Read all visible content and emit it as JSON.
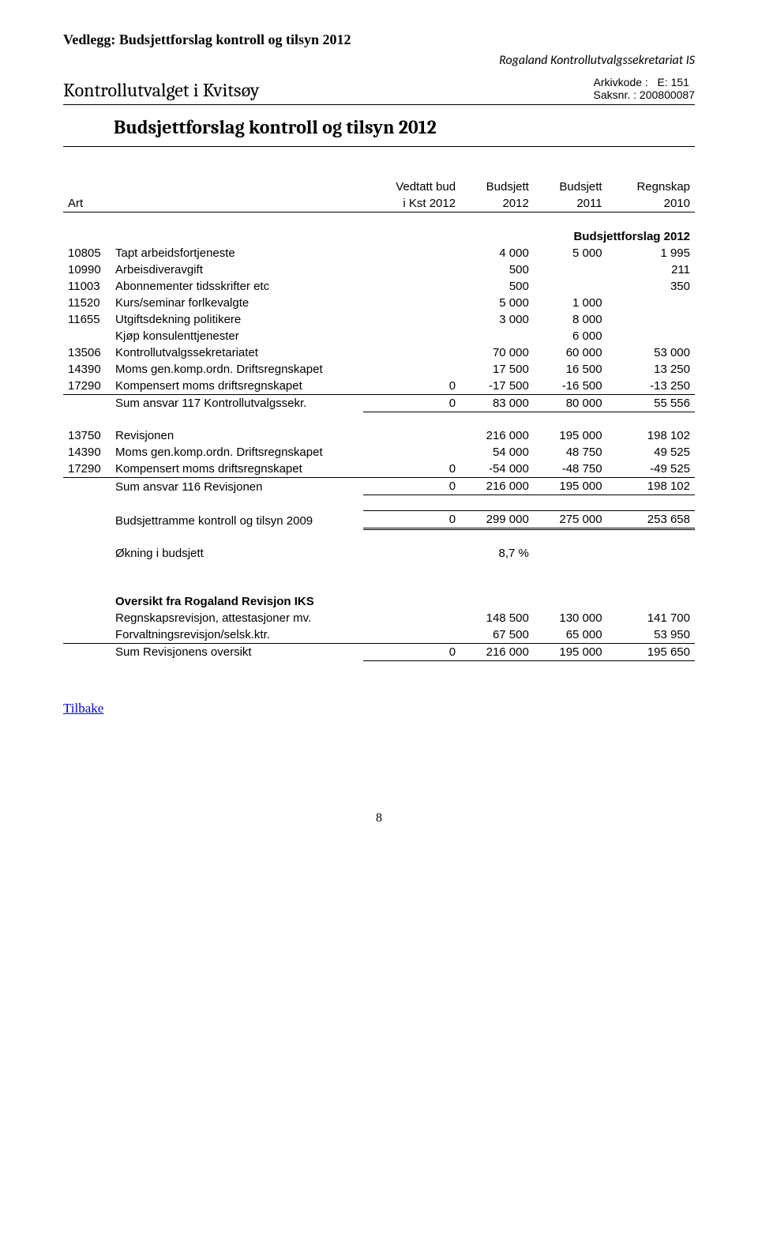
{
  "attachmentTitle": "Vedlegg: Budsjettforslag kontroll og tilsyn 2012",
  "headerRight": "Rogaland Kontrollutvalgssekretariat IS",
  "boardTitle": "Kontrollutvalget i Kvitsøy",
  "arkiv": {
    "lbl1": "Arkivkode :",
    "val1": "E: 151",
    "lbl2": "Saksnr.",
    "sep": " : ",
    "val2": "200800087"
  },
  "proposalTitle": "Budsjettforslag kontroll og tilsyn 2012",
  "columns": {
    "art": "Art",
    "c1a": "Vedtatt bud",
    "c1b": "i Kst 2012",
    "c2a": "Budsjett",
    "c2b": "2012",
    "c3a": "Budsjett",
    "c3b": "2011",
    "c4a": "Regnskap",
    "c4b": "2010"
  },
  "section1Title": "Budsjettforslag 2012",
  "rows1": [
    {
      "code": "10805",
      "desc": "Tapt arbeidsfortjeneste",
      "v": [
        "",
        "4 000",
        "5 000",
        "1 995"
      ]
    },
    {
      "code": "10990",
      "desc": "Arbeisdiveravgift",
      "v": [
        "",
        "500",
        "",
        "211"
      ]
    },
    {
      "code": "11003",
      "desc": "Abonnementer tidsskrifter etc",
      "v": [
        "",
        "500",
        "",
        "350"
      ]
    },
    {
      "code": "11520",
      "desc": "Kurs/seminar forlkevalgte",
      "v": [
        "",
        "5 000",
        "1 000",
        ""
      ]
    },
    {
      "code": "11655",
      "desc": "Utgiftsdekning politikere",
      "v": [
        "",
        "3 000",
        "8 000",
        ""
      ]
    },
    {
      "code": "",
      "desc": "Kjøp konsulenttjenester",
      "v": [
        "",
        "",
        "6 000",
        ""
      ]
    },
    {
      "code": "13506",
      "desc": "Kontrollutvalgssekretariatet",
      "v": [
        "",
        "70 000",
        "60 000",
        "53 000"
      ]
    },
    {
      "code": "14390",
      "desc": "Moms gen.komp.ordn. Driftsregnskapet",
      "v": [
        "",
        "17 500",
        "16 500",
        "13 250"
      ]
    },
    {
      "code": "17290",
      "desc": "Kompensert moms driftsregnskapet",
      "v": [
        "0",
        "-17 500",
        "-16 500",
        "-13 250"
      ]
    }
  ],
  "sum1": {
    "desc": "Sum ansvar 117 Kontrollutvalgssekr.",
    "v": [
      "0",
      "83 000",
      "80 000",
      "55 556"
    ]
  },
  "rows2": [
    {
      "code": "13750",
      "desc": "Revisjonen",
      "v": [
        "",
        "216 000",
        "195 000",
        "198 102"
      ]
    },
    {
      "code": "14390",
      "desc": "Moms gen.komp.ordn. Driftsregnskapet",
      "v": [
        "",
        "54 000",
        "48 750",
        "49 525"
      ]
    },
    {
      "code": "17290",
      "desc": "Kompensert moms driftsregnskapet",
      "v": [
        "0",
        "-54 000",
        "-48 750",
        "-49 525"
      ]
    }
  ],
  "sum2": {
    "desc": "Sum ansvar 116 Revisjonen",
    "v": [
      "0",
      "216 000",
      "195 000",
      "198 102"
    ]
  },
  "ramme": {
    "desc": "Budsjettramme kontroll og tilsyn 2009",
    "v": [
      "0",
      "299 000",
      "275 000",
      "253 658"
    ]
  },
  "increase": {
    "desc": "Økning i budsjett",
    "v": [
      "",
      "8,7 %",
      "",
      ""
    ]
  },
  "section3Title": "Oversikt fra Rogaland Revisjon IKS",
  "rows3": [
    {
      "code": "",
      "desc": "Regnskapsrevisjon, attestasjoner mv.",
      "v": [
        "",
        "148 500",
        "130 000",
        "141 700"
      ]
    },
    {
      "code": "",
      "desc": "Forvaltningsrevisjon/selsk.ktr.",
      "v": [
        "",
        "67 500",
        "65 000",
        "53 950"
      ]
    }
  ],
  "sum3": {
    "desc": "Sum Revisjonens oversikt",
    "v": [
      "0",
      "216 000",
      "195 000",
      "195 650"
    ]
  },
  "backLink": "Tilbake",
  "pageNum": "8"
}
